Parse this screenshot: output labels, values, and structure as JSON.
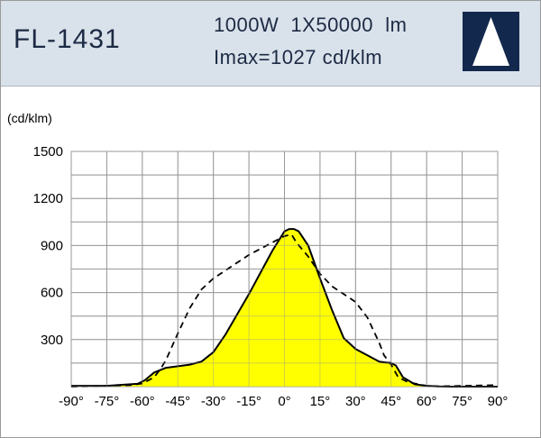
{
  "header": {
    "model": "FL-1431",
    "spec_line1": "1000W  1X50000  lm",
    "spec_line2": "Imax=1027 cd/klm",
    "logo": "white-triangle-on-navy"
  },
  "colors": {
    "header_bg": "#d9e1ea",
    "logo_bg": "#13284d",
    "fill": "#ffff00",
    "curve": "#000000",
    "grid": "#999999"
  },
  "chart_data": {
    "type": "line",
    "ylabel": "(cd/klm)",
    "xlim": [
      -90,
      90
    ],
    "ylim": [
      0,
      1500
    ],
    "x_ticks": [
      -90,
      -75,
      -60,
      -45,
      -30,
      -15,
      0,
      15,
      30,
      45,
      60,
      75,
      90
    ],
    "x_tick_labels": [
      "-90°",
      "-75°",
      "-60°",
      "-45°",
      "-30°",
      "-15°",
      "0°",
      "15°",
      "30°",
      "45°",
      "60°",
      "75°",
      "90°"
    ],
    "y_ticks": [
      0,
      300,
      600,
      900,
      1200,
      1500
    ],
    "y_tick_labels": [
      "",
      "300",
      "600",
      "900",
      "1200",
      "1500"
    ],
    "grid": true,
    "series": [
      {
        "style": "solid-filled",
        "x": [
          -90,
          -75,
          -62,
          -59,
          -55,
          -50,
          -45,
          -40,
          -35,
          -30,
          -25,
          -20,
          -15,
          -10,
          -5,
          0,
          2,
          4,
          6,
          10,
          15,
          20,
          25,
          30,
          35,
          40,
          42,
          45,
          47,
          50,
          55,
          60,
          65,
          70,
          75,
          80,
          85,
          90
        ],
        "y": [
          5,
          5,
          18,
          40,
          90,
          120,
          130,
          140,
          160,
          220,
          330,
          460,
          590,
          730,
          870,
          990,
          1005,
          1005,
          990,
          900,
          690,
          490,
          310,
          240,
          200,
          160,
          155,
          150,
          135,
          60,
          15,
          5,
          2,
          0,
          0,
          0,
          0,
          0
        ]
      },
      {
        "style": "dashed",
        "x": [
          -90,
          -75,
          -65,
          -60,
          -55,
          -52,
          -50,
          -45,
          -40,
          -35,
          -30,
          -25,
          -20,
          -15,
          -10,
          -5,
          0,
          3,
          5,
          10,
          15,
          20,
          25,
          30,
          35,
          40,
          42,
          45,
          48,
          52,
          55,
          60,
          65,
          75,
          90
        ],
        "y": [
          0,
          5,
          10,
          20,
          60,
          120,
          170,
          340,
          500,
          620,
          690,
          740,
          790,
          840,
          880,
          920,
          960,
          970,
          920,
          830,
          720,
          640,
          590,
          540,
          440,
          280,
          200,
          140,
          60,
          30,
          20,
          5,
          2,
          5,
          10
        ]
      }
    ]
  }
}
